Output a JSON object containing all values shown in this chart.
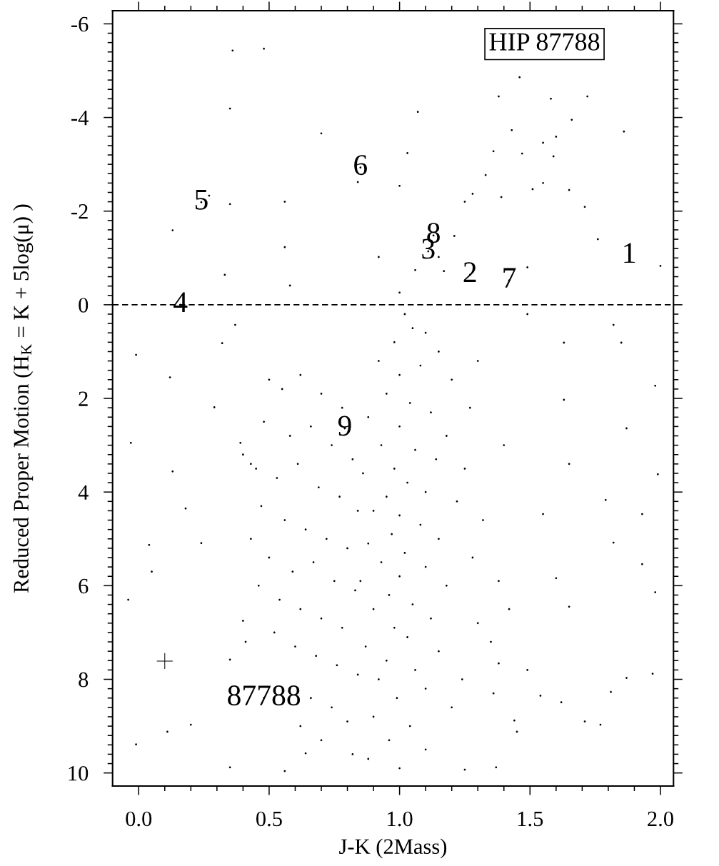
{
  "chart_data": {
    "type": "scatter",
    "title": "HIP 87788",
    "xlabel": "J-K (2Mass)",
    "ylabel": "Reduced Proper Motion (H$_{K}$ = K + 5log(μ) )",
    "marker": "circle",
    "xlim": [
      -0.1,
      2.05
    ],
    "ylim": [
      10.28,
      -6.28
    ],
    "xticks": [
      {
        "value": 0,
        "label": "0.0"
      },
      {
        "value": 0.1,
        "label": null
      },
      {
        "value": 0.2,
        "label": null
      },
      {
        "value": 0.3,
        "label": null
      },
      {
        "value": 0.4,
        "label": null
      },
      {
        "value": 0.5,
        "label": "0.5"
      },
      {
        "value": 0.6,
        "label": null
      },
      {
        "value": 0.7,
        "label": null
      },
      {
        "value": 0.8,
        "label": null
      },
      {
        "value": 0.9,
        "label": null
      },
      {
        "value": 1,
        "label": "1.0"
      },
      {
        "value": 1.1,
        "label": null
      },
      {
        "value": 1.2,
        "label": null
      },
      {
        "value": 1.3,
        "label": null
      },
      {
        "value": 1.4,
        "label": null
      },
      {
        "value": 1.5,
        "label": "1.5"
      },
      {
        "value": 1.6,
        "label": null
      },
      {
        "value": 1.7,
        "label": null
      },
      {
        "value": 1.8,
        "label": null
      },
      {
        "value": 1.9,
        "label": null
      },
      {
        "value": 2,
        "label": "2.0"
      }
    ],
    "yticks": [
      -6,
      {
        "value": -5.8,
        "label": null
      },
      {
        "value": -5.6,
        "label": null
      },
      {
        "value": -5.4,
        "label": null
      },
      {
        "value": -5.2,
        "label": null
      },
      {
        "value": -5,
        "label": null
      },
      {
        "value": -4.8,
        "label": null
      },
      {
        "value": -4.6,
        "label": null
      },
      {
        "value": -4.4,
        "label": null
      },
      {
        "value": -4.2,
        "label": null
      },
      -4,
      {
        "value": -3.8,
        "label": null
      },
      {
        "value": -3.6,
        "label": null
      },
      {
        "value": -3.4,
        "label": null
      },
      {
        "value": -3.2,
        "label": null
      },
      {
        "value": -3,
        "label": null
      },
      {
        "value": -2.8,
        "label": null
      },
      {
        "value": -2.6,
        "label": null
      },
      {
        "value": -2.4,
        "label": null
      },
      {
        "value": -2.2,
        "label": null
      },
      -2,
      {
        "value": -1.8,
        "label": null
      },
      {
        "value": -1.6,
        "label": null
      },
      {
        "value": -1.4,
        "label": null
      },
      {
        "value": -1.2,
        "label": null
      },
      {
        "value": -1,
        "label": null
      },
      {
        "value": -0.8,
        "label": null
      },
      {
        "value": -0.6,
        "label": null
      },
      {
        "value": -0.4,
        "label": null
      },
      {
        "value": -0.2,
        "label": null
      },
      0,
      {
        "value": 0.2,
        "label": null
      },
      {
        "value": 0.4,
        "label": null
      },
      {
        "value": 0.6,
        "label": null
      },
      {
        "value": 0.8,
        "label": null
      },
      {
        "value": 1,
        "label": null
      },
      {
        "value": 1.2,
        "label": null
      },
      {
        "value": 1.4,
        "label": null
      },
      {
        "value": 1.6,
        "label": null
      },
      {
        "value": 1.8,
        "label": null
      },
      2,
      {
        "value": 2.2,
        "label": null
      },
      {
        "value": 2.4,
        "label": null
      },
      {
        "value": 2.6,
        "label": null
      },
      {
        "value": 2.8,
        "label": null
      },
      {
        "value": 3,
        "label": null
      },
      {
        "value": 3.2,
        "label": null
      },
      {
        "value": 3.4,
        "label": null
      },
      {
        "value": 3.6,
        "label": null
      },
      {
        "value": 3.8,
        "label": null
      },
      4,
      {
        "value": 4.2,
        "label": null
      },
      {
        "value": 4.4,
        "label": null
      },
      {
        "value": 4.6,
        "label": null
      },
      {
        "value": 4.8,
        "label": null
      },
      {
        "value": 5,
        "label": null
      },
      {
        "value": 5.2,
        "label": null
      },
      {
        "value": 5.4,
        "label": null
      },
      {
        "value": 5.6,
        "label": null
      },
      {
        "value": 5.8,
        "label": null
      },
      6,
      {
        "value": 6.2,
        "label": null
      },
      {
        "value": 6.4,
        "label": null
      },
      {
        "value": 6.6,
        "label": null
      },
      {
        "value": 6.8,
        "label": null
      },
      {
        "value": 7,
        "label": null
      },
      {
        "value": 7.2,
        "label": null
      },
      {
        "value": 7.4,
        "label": null
      },
      {
        "value": 7.6,
        "label": null
      },
      {
        "value": 7.8,
        "label": null
      },
      8,
      {
        "value": 8.2,
        "label": null
      },
      {
        "value": 8.4,
        "label": null
      },
      {
        "value": 8.6,
        "label": null
      },
      {
        "value": 8.8,
        "label": null
      },
      {
        "value": 9,
        "label": null
      },
      {
        "value": 9.2,
        "label": null
      },
      {
        "value": 9.4,
        "label": null
      },
      {
        "value": 9.6,
        "label": null
      },
      {
        "value": 9.8,
        "label": null
      },
      10
    ],
    "ref_lines": [
      {
        "axis": "y",
        "value": 0,
        "color": "#000000",
        "line_style": "dashed"
      }
    ],
    "series": [
      {
        "color": "#000000",
        "x": [
          0.36,
          0.48,
          0.35,
          0.27,
          0.35,
          0.56,
          1.46,
          1.38,
          1.58,
          1.72,
          1.66,
          1.86,
          1.43,
          1.6,
          1.55,
          1.36,
          1.47,
          1.59,
          1.33,
          1.55,
          1.51,
          1.65,
          1.39,
          1.28,
          1.25,
          1.07,
          0.84,
          1.03,
          0.7,
          0.13,
          0.56,
          0.33,
          0.58,
          1.0,
          1.15,
          1.76,
          2.0,
          1.71,
          1.0,
          1.06,
          1.17,
          0.92,
          1.21,
          1.49,
          -0.01,
          -0.03,
          0.04,
          -0.04,
          -0.01,
          0.12,
          0.13,
          0.18,
          0.24,
          0.05,
          0.29,
          0.32,
          0.37,
          0.39,
          0.43,
          0.4,
          0.35,
          0.11,
          0.2,
          0.35,
          0.56,
          0.64,
          1.65,
          1.79,
          1.87,
          1.82,
          1.93,
          1.99,
          1.98,
          1.65,
          1.55,
          1.49,
          1.77,
          1.87,
          1.44,
          1.38,
          1.6,
          1.98,
          1.82,
          1.63,
          1.49,
          1.85,
          1.93,
          1.63,
          1.97,
          1.81,
          1.71,
          1.62,
          1.54,
          1.45,
          1.37,
          1.25,
          1.02,
          1.05,
          0.98,
          1.1,
          1.15,
          0.92,
          1.0,
          1.08,
          1.2,
          0.95,
          1.04,
          1.12,
          0.88,
          1.0,
          1.18,
          0.93,
          1.06,
          1.14,
          0.98,
          0.86,
          1.03,
          1.1,
          0.95,
          1.22,
          0.9,
          1.0,
          1.08,
          0.97,
          1.15,
          0.88,
          1.02,
          0.93,
          1.1,
          1.0,
          0.85,
          1.18,
          0.96,
          1.05,
          0.9,
          1.12,
          0.98,
          1.03,
          0.87,
          1.15,
          0.95,
          1.06,
          0.92,
          1.1,
          0.99,
          1.2,
          0.9,
          1.04,
          0.96,
          1.1,
          0.88,
          1.0,
          1.25,
          1.28,
          1.3,
          1.27,
          1.32,
          1.35,
          1.24,
          1.3,
          1.4,
          1.38,
          1.42,
          1.36,
          0.5,
          0.55,
          0.62,
          0.7,
          0.78,
          0.48,
          0.58,
          0.66,
          0.74,
          0.82,
          0.45,
          0.53,
          0.61,
          0.69,
          0.77,
          0.84,
          0.47,
          0.56,
          0.64,
          0.72,
          0.8,
          0.5,
          0.59,
          0.67,
          0.75,
          0.83,
          0.46,
          0.54,
          0.62,
          0.7,
          0.78,
          0.52,
          0.6,
          0.68,
          0.76,
          0.84,
          0.58,
          0.66,
          0.74,
          0.8,
          0.7,
          0.62,
          0.82,
          0.41,
          0.43,
          0.4,
          1.88,
          1.27,
          1.11,
          0.16,
          0.24,
          0.85,
          1.42,
          1.13,
          0.79,
          0.48
        ],
        "values": [
          -5.43,
          -5.47,
          -4.19,
          -2.33,
          -2.15,
          -2.2,
          -4.86,
          -4.45,
          -4.4,
          -4.45,
          -3.95,
          -3.7,
          -3.73,
          -3.59,
          -3.46,
          -3.28,
          -3.23,
          -3.17,
          -2.77,
          -2.6,
          -2.47,
          -2.45,
          -2.3,
          -2.37,
          -2.2,
          -4.12,
          -2.62,
          -3.24,
          -3.66,
          -1.59,
          -1.23,
          -0.64,
          -0.41,
          -2.54,
          -1.02,
          -1.4,
          -0.83,
          -2.09,
          -0.26,
          -0.74,
          -0.72,
          -1.02,
          -1.47,
          -0.8,
          1.07,
          2.95,
          5.13,
          6.3,
          9.39,
          1.55,
          3.56,
          4.35,
          5.09,
          5.7,
          2.19,
          0.82,
          0.43,
          2.95,
          3.4,
          6.75,
          7.58,
          9.12,
          8.97,
          9.88,
          9.96,
          9.58,
          3.4,
          4.17,
          2.64,
          5.08,
          5.54,
          3.62,
          6.14,
          6.45,
          4.47,
          7.8,
          8.97,
          7.97,
          8.88,
          7.66,
          5.84,
          1.73,
          0.43,
          0.81,
          0.2,
          0.81,
          4.47,
          2.03,
          7.88,
          8.27,
          8.9,
          8.49,
          8.35,
          9.12,
          9.88,
          9.93,
          0.2,
          0.5,
          0.8,
          0.6,
          1.0,
          1.2,
          1.5,
          1.3,
          1.6,
          1.9,
          2.1,
          2.3,
          2.4,
          2.6,
          2.8,
          3.0,
          3.1,
          3.3,
          3.5,
          3.6,
          3.8,
          4.0,
          4.1,
          4.2,
          4.4,
          4.5,
          4.7,
          4.9,
          5.0,
          5.1,
          5.3,
          5.5,
          5.6,
          5.8,
          5.9,
          6.0,
          6.2,
          6.4,
          6.5,
          6.7,
          6.9,
          7.1,
          7.3,
          7.4,
          7.6,
          7.8,
          8.0,
          8.2,
          8.4,
          8.6,
          8.8,
          9.0,
          9.3,
          9.5,
          9.7,
          9.9,
          3.5,
          5.4,
          6.8,
          2.2,
          4.6,
          7.2,
          8.0,
          1.2,
          3.0,
          5.9,
          6.5,
          8.3,
          1.6,
          1.8,
          1.5,
          1.9,
          2.2,
          2.5,
          2.8,
          2.6,
          3.0,
          3.3,
          3.5,
          3.7,
          3.4,
          3.9,
          4.1,
          4.4,
          4.3,
          4.6,
          4.8,
          5.0,
          5.2,
          5.4,
          5.7,
          5.5,
          5.9,
          6.1,
          6.0,
          6.3,
          6.5,
          6.7,
          6.9,
          7.0,
          7.3,
          7.5,
          7.7,
          7.9,
          8.2,
          8.4,
          8.6,
          8.9,
          9.3,
          9.0,
          9.6,
          7.2,
          5.0,
          3.2,
          -1.05,
          -0.64,
          -1.14,
          0.0,
          -2.19,
          -2.93,
          -0.52,
          -1.48,
          2.64,
          8.4
        ]
      },
      {
        "marker": "cross",
        "color": "#000000",
        "x": [
          0.1
        ],
        "values": [
          7.61
        ]
      }
    ],
    "annotations": [
      {
        "text": "1",
        "x": 1.88,
        "y": -1.05
      },
      {
        "text": "2",
        "x": 1.27,
        "y": -0.64
      },
      {
        "text": "3",
        "x": 1.11,
        "y": -1.14
      },
      {
        "text": "4",
        "x": 0.16,
        "y": 0.0
      },
      {
        "text": "5",
        "x": 0.24,
        "y": -2.19
      },
      {
        "text": "6",
        "x": 0.85,
        "y": -2.93
      },
      {
        "text": "7",
        "x": 1.42,
        "y": -0.52
      },
      {
        "text": "8",
        "x": 1.13,
        "y": -1.48
      },
      {
        "text": "9",
        "x": 0.79,
        "y": 2.64
      },
      {
        "text": "87788",
        "x": 0.48,
        "y": 8.4
      }
    ]
  }
}
